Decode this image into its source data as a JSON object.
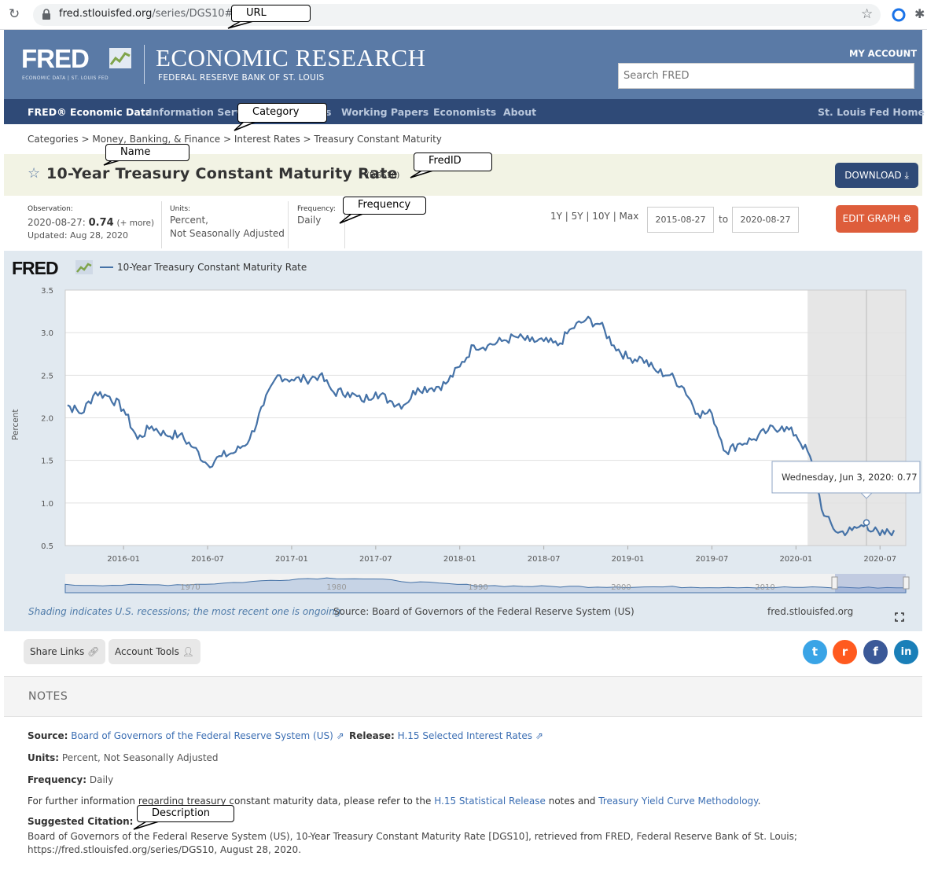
{
  "browser": {
    "url_domain": "fred.stlouisfed.org",
    "url_path": "/series/DGS10#"
  },
  "header": {
    "logo": "FRED",
    "logo_sub": "ECONOMIC DATA | ST. LOUIS FED",
    "brand": "ECONOMIC RESEARCH",
    "org": "FEDERAL RESERVE BANK OF ST. LOUIS",
    "my_account": "MY ACCOUNT",
    "search_placeholder": "Search FRED"
  },
  "nav": {
    "items": [
      "FRED® Economic Data",
      "Information Serv",
      "s",
      "Working Papers",
      "Economists",
      "About"
    ],
    "right": "St. Louis Fed Home"
  },
  "breadcrumb": "Categories > Money, Banking, & Finance > Interest Rates > Treasury Constant Maturity",
  "series": {
    "title": "10-Year Treasury Constant Maturity Rate",
    "id": "(DGS10)",
    "download": "DOWNLOAD",
    "observation_label": "Observation:",
    "observation_date": "2020-08-27:",
    "observation_value": "0.74",
    "observation_more": "(+ more)",
    "updated": "Updated: Aug 28, 2020",
    "units_label": "Units:",
    "units_1": "Percent,",
    "units_2": "Not Seasonally Adjusted",
    "frequency_label": "Frequency:",
    "frequency": "Daily",
    "ranges": "1Y | 5Y | 10Y | Max",
    "date_from": "2015-08-27",
    "date_to_label": "to",
    "date_to": "2020-08-27",
    "edit_graph": "EDIT GRAPH"
  },
  "chart_data": {
    "type": "line",
    "legend": "10-Year Treasury Constant Maturity Rate",
    "ylabel": "Percent",
    "ylim": [
      0.5,
      3.5
    ],
    "yticks": [
      "0.5",
      "1.0",
      "1.5",
      "2.0",
      "2.5",
      "3.0",
      "3.5"
    ],
    "xticks": [
      "2016-01",
      "2016-07",
      "2017-01",
      "2017-07",
      "2018-01",
      "2018-07",
      "2019-01",
      "2019-07",
      "2020-01",
      "2020-07"
    ],
    "recession_shading": [
      "2020-02",
      "2020-08"
    ],
    "tooltip": "Wednesday, Jun 3, 2020: 0.77",
    "series": [
      {
        "name": "10-Year Treasury Constant Maturity Rate",
        "color": "#4572a7",
        "x": [
          "2015-08",
          "2015-09",
          "2015-10",
          "2015-11",
          "2015-12",
          "2016-01",
          "2016-02",
          "2016-03",
          "2016-04",
          "2016-05",
          "2016-06",
          "2016-07",
          "2016-08",
          "2016-09",
          "2016-10",
          "2016-11",
          "2016-12",
          "2017-01",
          "2017-02",
          "2017-03",
          "2017-04",
          "2017-05",
          "2017-06",
          "2017-07",
          "2017-08",
          "2017-09",
          "2017-10",
          "2017-11",
          "2017-12",
          "2018-01",
          "2018-02",
          "2018-03",
          "2018-04",
          "2018-05",
          "2018-06",
          "2018-07",
          "2018-08",
          "2018-09",
          "2018-10",
          "2018-11",
          "2018-12",
          "2019-01",
          "2019-02",
          "2019-03",
          "2019-04",
          "2019-05",
          "2019-06",
          "2019-07",
          "2019-08",
          "2019-09",
          "2019-10",
          "2019-11",
          "2019-12",
          "2020-01",
          "2020-02",
          "2020-03",
          "2020-04",
          "2020-05",
          "2020-06",
          "2020-07",
          "2020-08"
        ],
        "values": [
          2.2,
          2.15,
          2.05,
          2.3,
          2.25,
          2.1,
          1.75,
          1.9,
          1.8,
          1.8,
          1.65,
          1.45,
          1.55,
          1.6,
          1.75,
          2.15,
          2.5,
          2.45,
          2.45,
          2.5,
          2.3,
          2.3,
          2.2,
          2.3,
          2.2,
          2.15,
          2.35,
          2.35,
          2.4,
          2.6,
          2.85,
          2.85,
          2.9,
          2.95,
          2.9,
          2.9,
          2.85,
          3.05,
          3.15,
          3.1,
          2.85,
          2.7,
          2.7,
          2.55,
          2.5,
          2.35,
          2.05,
          2.05,
          1.6,
          1.7,
          1.75,
          1.85,
          1.9,
          1.8,
          1.55,
          0.85,
          0.65,
          0.68,
          0.75,
          0.62,
          0.68
        ]
      }
    ]
  },
  "chart_footer": {
    "shading_note": "Shading indicates U.S. recessions; the most recent one is ongoing.",
    "source": "Source: Board of Governors of the Federal Reserve System (US)",
    "site": "fred.stlouisfed.org",
    "navigator_labels": [
      "1970",
      "1980",
      "1990",
      "2000",
      "2010"
    ]
  },
  "share": {
    "share_links": "Share Links",
    "account_tools": "Account Tools",
    "social": [
      "twitter",
      "reddit",
      "facebook",
      "linkedin"
    ]
  },
  "notes": {
    "heading": "NOTES",
    "source_label": "Source:",
    "source_value": "Board of Governors of the Federal Reserve System (US)",
    "release_label": "Release:",
    "release_value": "H.15 Selected Interest Rates",
    "units_label": "Units:",
    "units_value": "Percent, Not Seasonally Adjusted",
    "frequency_label": "Frequency:",
    "frequency_value": "Daily",
    "info_pre": "For further information regarding treasury constant maturity data, please refer to the",
    "info_link1": "H.15 Statistical Release",
    "info_mid": "notes and",
    "info_link2": "Treasury Yield Curve Methodology",
    "info_end": ".",
    "citation_label": "Suggested Citation:",
    "citation_1": "Board of Governors of the Federal Reserve System (US), 10-Year Treasury Constant Maturity Rate [DGS10], retrieved from FRED, Federal Reserve Bank of St. Louis;",
    "citation_2": "https://fred.stlouisfed.org/series/DGS10, August 28, 2020."
  },
  "annotations": {
    "url": "URL",
    "category": "Category",
    "name": "Name",
    "fredid": "FredID",
    "frequency": "Frequency",
    "description": "Description"
  }
}
